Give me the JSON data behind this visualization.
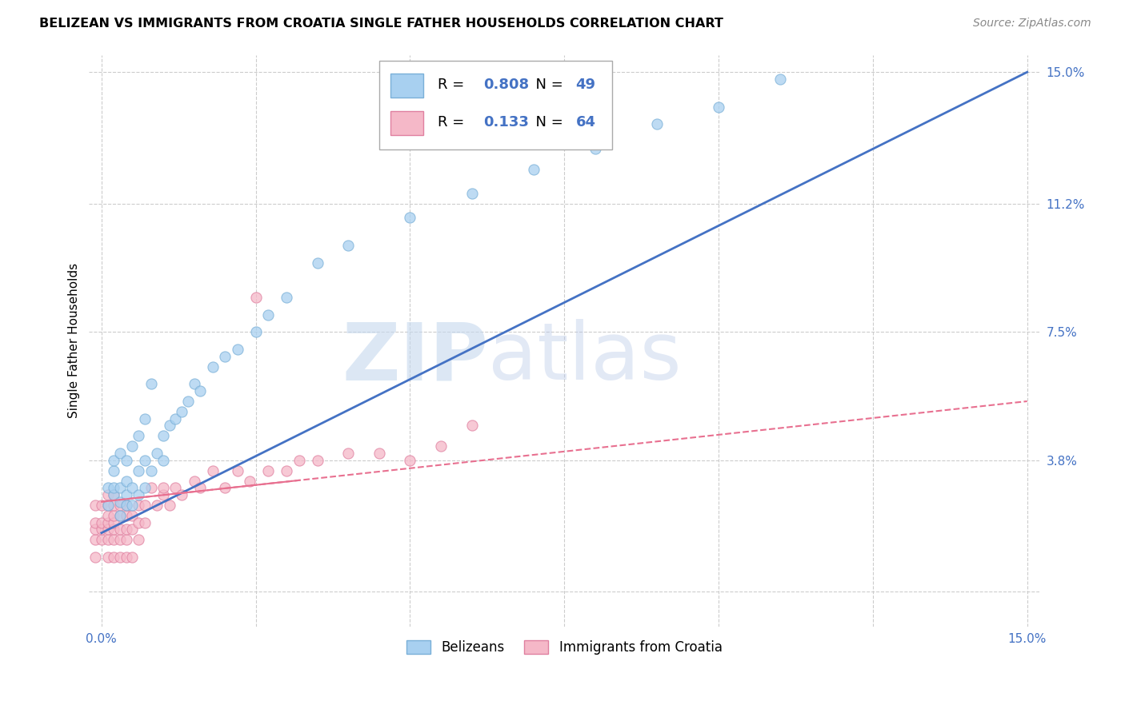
{
  "title": "BELIZEAN VS IMMIGRANTS FROM CROATIA SINGLE FATHER HOUSEHOLDS CORRELATION CHART",
  "source": "Source: ZipAtlas.com",
  "ylabel": "Single Father Households",
  "xlim": [
    -0.002,
    0.152
  ],
  "ylim": [
    -0.01,
    0.155
  ],
  "ytick_values": [
    0.0,
    0.038,
    0.075,
    0.112,
    0.15
  ],
  "ytick_labels": [
    "",
    "3.8%",
    "7.5%",
    "11.2%",
    "15.0%"
  ],
  "xtick_values": [
    0.0,
    0.025,
    0.05,
    0.075,
    0.1,
    0.125,
    0.15
  ],
  "xtick_labels": [
    "0.0%",
    "",
    "",
    "",
    "",
    "",
    "15.0%"
  ],
  "belizean_color": "#a8d0f0",
  "belizean_edge": "#7ab0d8",
  "croatia_color": "#f5b8c8",
  "croatia_edge": "#e080a0",
  "line_blue": "#4472c4",
  "line_pink": "#e87090",
  "R_belizean": "0.808",
  "N_belizean": "49",
  "R_croatia": "0.133",
  "N_croatia": "64",
  "watermark_zip": "ZIP",
  "watermark_atlas": "atlas",
  "legend_belizean": "Belizeans",
  "legend_croatia": "Immigrants from Croatia",
  "bel_line_x0": 0.0,
  "bel_line_y0": 0.017,
  "bel_line_x1": 0.15,
  "bel_line_y1": 0.15,
  "cro_line_x0": 0.0,
  "cro_line_y0": 0.026,
  "cro_line_x1": 0.15,
  "cro_line_y1": 0.055,
  "belizean_x": [
    0.001,
    0.001,
    0.002,
    0.002,
    0.002,
    0.002,
    0.003,
    0.003,
    0.003,
    0.003,
    0.004,
    0.004,
    0.004,
    0.004,
    0.005,
    0.005,
    0.005,
    0.006,
    0.006,
    0.006,
    0.007,
    0.007,
    0.007,
    0.008,
    0.008,
    0.009,
    0.01,
    0.01,
    0.011,
    0.012,
    0.013,
    0.014,
    0.015,
    0.016,
    0.018,
    0.02,
    0.022,
    0.025,
    0.027,
    0.03,
    0.035,
    0.04,
    0.05,
    0.06,
    0.07,
    0.08,
    0.09,
    0.1,
    0.11
  ],
  "belizean_y": [
    0.025,
    0.03,
    0.028,
    0.03,
    0.035,
    0.038,
    0.022,
    0.026,
    0.03,
    0.04,
    0.025,
    0.028,
    0.032,
    0.038,
    0.025,
    0.03,
    0.042,
    0.028,
    0.035,
    0.045,
    0.03,
    0.038,
    0.05,
    0.035,
    0.06,
    0.04,
    0.038,
    0.045,
    0.048,
    0.05,
    0.052,
    0.055,
    0.06,
    0.058,
    0.065,
    0.068,
    0.07,
    0.075,
    0.08,
    0.085,
    0.095,
    0.1,
    0.108,
    0.115,
    0.122,
    0.128,
    0.135,
    0.14,
    0.148
  ],
  "croatia_x": [
    -0.001,
    -0.001,
    -0.001,
    -0.001,
    -0.001,
    0.0,
    0.0,
    0.0,
    0.0,
    0.001,
    0.001,
    0.001,
    0.001,
    0.001,
    0.001,
    0.001,
    0.002,
    0.002,
    0.002,
    0.002,
    0.002,
    0.002,
    0.002,
    0.003,
    0.003,
    0.003,
    0.003,
    0.003,
    0.004,
    0.004,
    0.004,
    0.004,
    0.004,
    0.005,
    0.005,
    0.005,
    0.006,
    0.006,
    0.006,
    0.007,
    0.007,
    0.008,
    0.009,
    0.01,
    0.01,
    0.011,
    0.012,
    0.013,
    0.015,
    0.016,
    0.018,
    0.02,
    0.022,
    0.024,
    0.025,
    0.027,
    0.03,
    0.032,
    0.035,
    0.04,
    0.045,
    0.05,
    0.055,
    0.06
  ],
  "croatia_y": [
    0.01,
    0.015,
    0.018,
    0.02,
    0.025,
    0.015,
    0.018,
    0.02,
    0.025,
    0.01,
    0.015,
    0.018,
    0.02,
    0.022,
    0.025,
    0.028,
    0.01,
    0.015,
    0.018,
    0.02,
    0.022,
    0.025,
    0.028,
    0.01,
    0.015,
    0.018,
    0.022,
    0.025,
    0.01,
    0.015,
    0.018,
    0.022,
    0.025,
    0.01,
    0.018,
    0.022,
    0.015,
    0.02,
    0.025,
    0.02,
    0.025,
    0.03,
    0.025,
    0.028,
    0.03,
    0.025,
    0.03,
    0.028,
    0.032,
    0.03,
    0.035,
    0.03,
    0.035,
    0.032,
    0.085,
    0.035,
    0.035,
    0.038,
    0.038,
    0.04,
    0.04,
    0.038,
    0.042,
    0.048
  ],
  "grid_color": "#cccccc",
  "bg_color": "#ffffff",
  "tick_color": "#4472c4"
}
